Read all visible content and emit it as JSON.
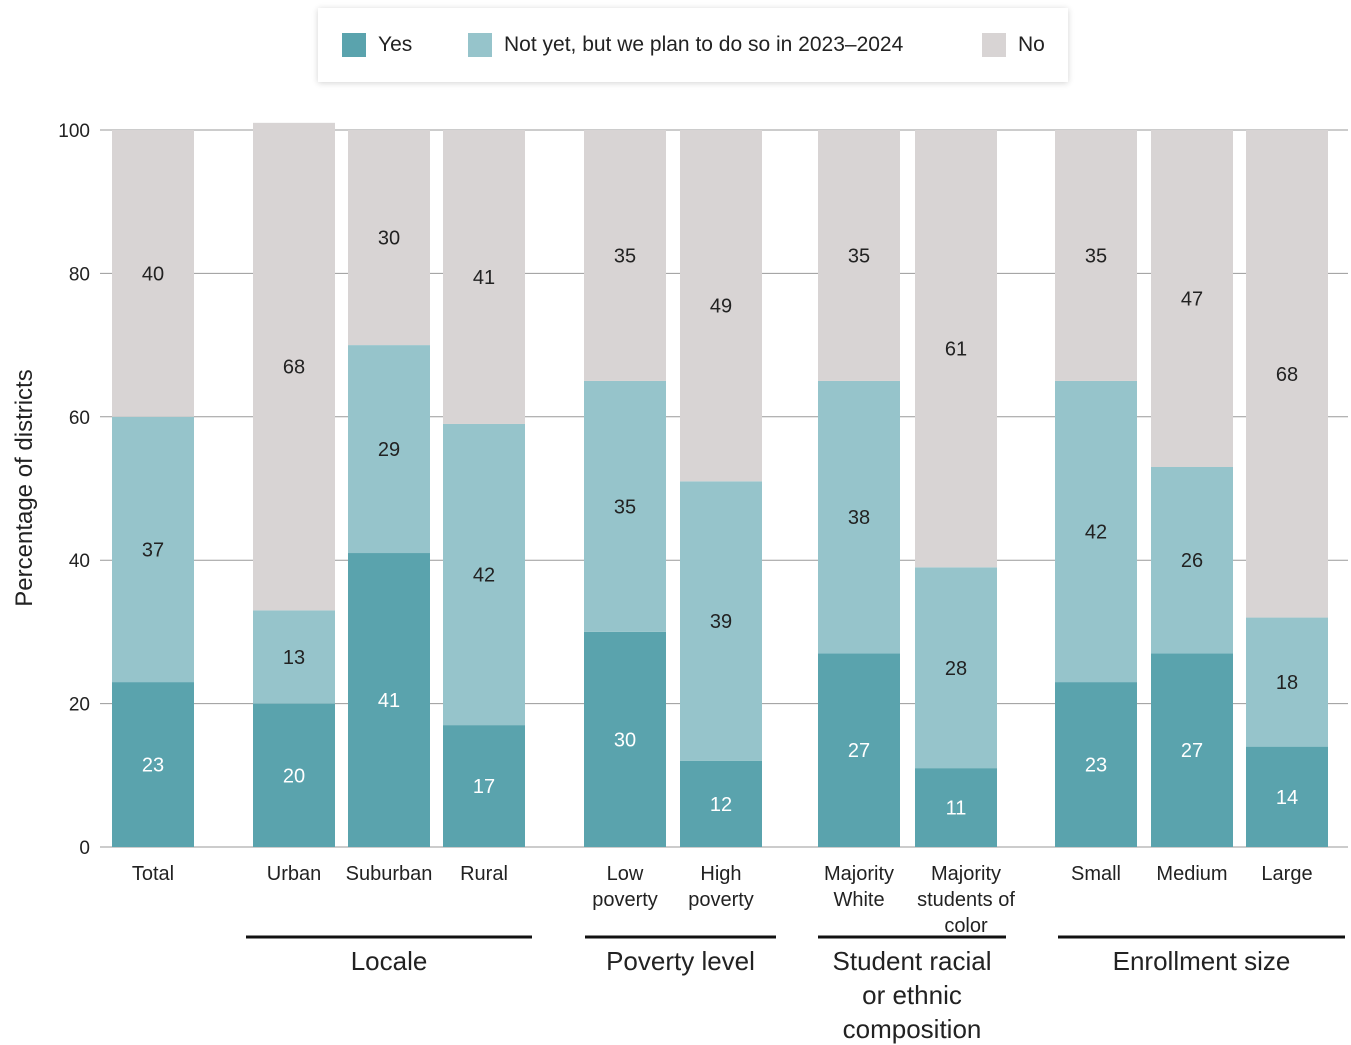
{
  "chart_data": {
    "type": "bar",
    "stacked": true,
    "ylabel": "Percentage of districts",
    "ylim": [
      0,
      100
    ],
    "yticks": [
      0,
      20,
      40,
      60,
      80,
      100
    ],
    "grid": true,
    "legend_position": "top-center",
    "categories": [
      "Total",
      "Urban",
      "Suburban",
      "Rural",
      "Low poverty",
      "High poverty",
      "Majority White",
      "Majority students of color",
      "Small",
      "Medium",
      "Large"
    ],
    "category_groups": [
      {
        "label": "",
        "categories": [
          "Total"
        ]
      },
      {
        "label": "Locale",
        "categories": [
          "Urban",
          "Suburban",
          "Rural"
        ]
      },
      {
        "label": "Poverty level",
        "categories": [
          "Low poverty",
          "High poverty"
        ]
      },
      {
        "label": "Student racial or ethnic composition",
        "categories": [
          "Majority White",
          "Majority students of color"
        ]
      },
      {
        "label": "Enrollment size",
        "categories": [
          "Small",
          "Medium",
          "Large"
        ]
      }
    ],
    "series": [
      {
        "name": "Yes",
        "color": "#5aa3ad",
        "label_color": "#ffffff",
        "values": [
          23,
          20,
          41,
          17,
          30,
          12,
          27,
          11,
          23,
          27,
          14
        ]
      },
      {
        "name": "Not yet, but we plan to do so in 2023–2024",
        "color": "#96c4cb",
        "label_color": "#222222",
        "values": [
          37,
          13,
          29,
          42,
          35,
          39,
          38,
          28,
          42,
          26,
          18
        ]
      },
      {
        "name": "No",
        "color": "#d8d4d4",
        "label_color": "#222222",
        "values": [
          40,
          68,
          30,
          41,
          35,
          49,
          35,
          61,
          35,
          47,
          68
        ]
      }
    ]
  }
}
